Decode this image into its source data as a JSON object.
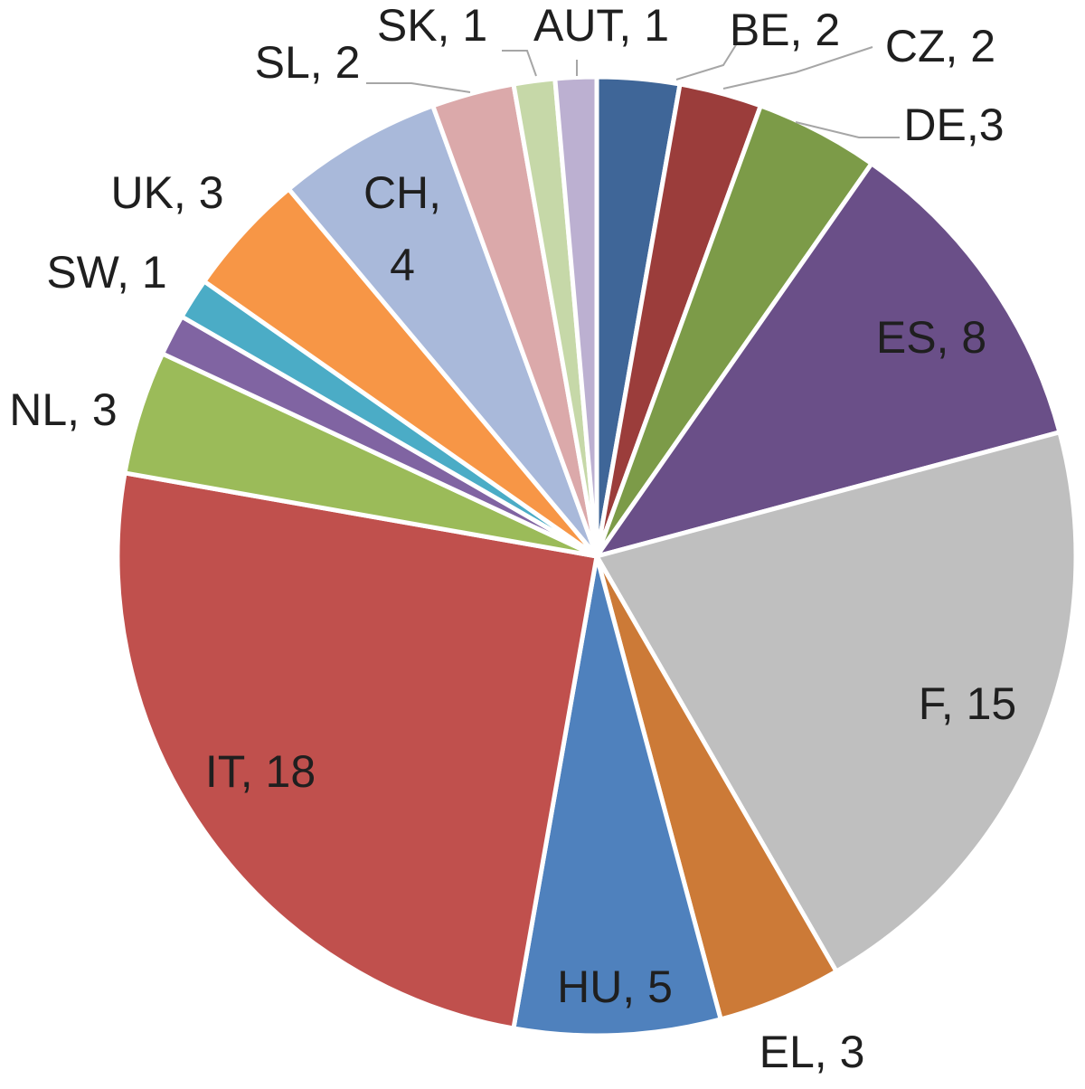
{
  "chart_data": {
    "type": "pie",
    "title": "",
    "start_angle_deg": 0,
    "direction": "clockwise",
    "slices": [
      {
        "label": "BE, 2",
        "value": 2,
        "color": "#3f6698"
      },
      {
        "label": "CZ, 2",
        "value": 2,
        "color": "#9b3d3b"
      },
      {
        "label": "DE,3",
        "value": 3,
        "color": "#7c9b48"
      },
      {
        "label": "ES, 8",
        "value": 8,
        "color": "#6a4f88"
      },
      {
        "label": "F, 15",
        "value": 15,
        "color": "#bfbfbf"
      },
      {
        "label": "EL, 3",
        "value": 3,
        "color": "#cc7a37"
      },
      {
        "label": "HU, 5",
        "value": 5,
        "color": "#4f81bd"
      },
      {
        "label": "IT, 18",
        "value": 18,
        "color": "#c0504d"
      },
      {
        "label": "NL, 3",
        "value": 3,
        "color": "#9bbb59"
      },
      {
        "label": "",
        "value": 1,
        "color": "#8064a2"
      },
      {
        "label": "SW, 1",
        "value": 1,
        "color": "#4bacc6"
      },
      {
        "label": "UK, 3",
        "value": 3,
        "color": "#f79646"
      },
      {
        "label": "CH, 4",
        "value": 4,
        "color": "#a9b9da"
      },
      {
        "label": "SL, 2",
        "value": 2,
        "color": "#dba9aa"
      },
      {
        "label": "SK, 1",
        "value": 1,
        "color": "#c6d8a8"
      },
      {
        "label": "AUT, 1",
        "value": 1,
        "color": "#bcb0d1"
      }
    ]
  }
}
